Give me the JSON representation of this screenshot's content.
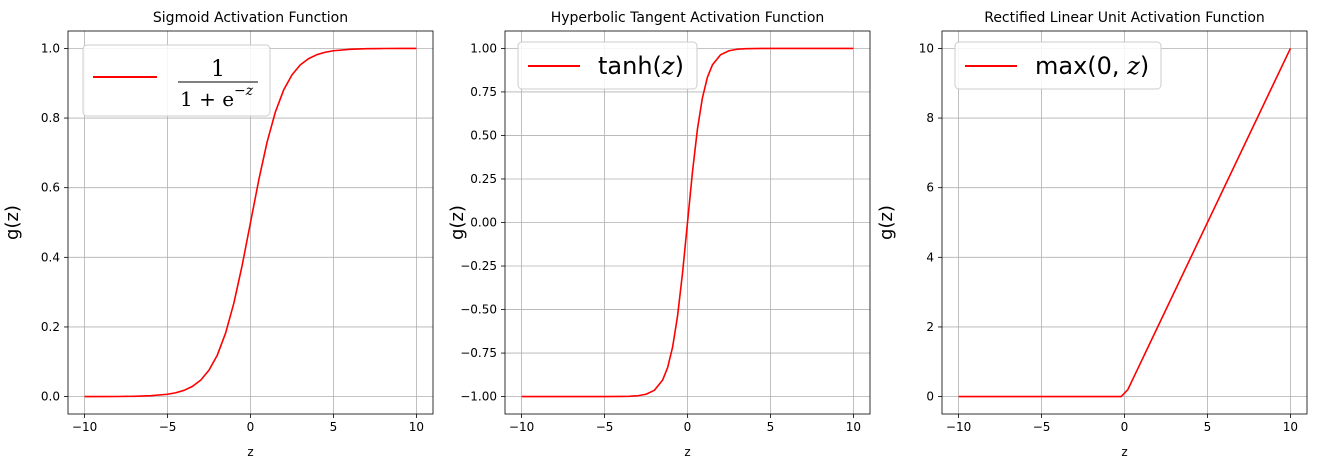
{
  "chart_data": [
    {
      "type": "line",
      "title": "Sigmoid Activation Function",
      "xlabel": "z",
      "ylabel": "g(z)",
      "xlim": [
        -11,
        11
      ],
      "ylim": [
        -0.05,
        1.05
      ],
      "xticks": [
        -10,
        -5,
        0,
        5,
        10
      ],
      "xtick_labels": [
        "−10",
        "−5",
        "0",
        "5",
        "10"
      ],
      "yticks": [
        0.0,
        0.2,
        0.4,
        0.6,
        0.8,
        1.0
      ],
      "ytick_labels": [
        "0.0",
        "0.2",
        "0.4",
        "0.6",
        "0.8",
        "1.0"
      ],
      "grid": true,
      "legend_position": "upper-left",
      "legend": {
        "numerator": "1",
        "denominator": "1 + e",
        "exponent": "−z"
      },
      "series": [
        {
          "color": "#ff0000",
          "x": [
            -10,
            -9,
            -8,
            -7,
            -6,
            -5,
            -4.5,
            -4,
            -3.5,
            -3,
            -2.5,
            -2,
            -1.5,
            -1,
            -0.5,
            0,
            0.5,
            1,
            1.5,
            2,
            2.5,
            3,
            3.5,
            4,
            4.5,
            5,
            6,
            7,
            8,
            9,
            10
          ],
          "y": [
            0.0,
            0.0001,
            0.0003,
            0.0009,
            0.0025,
            0.0067,
            0.011,
            0.018,
            0.0293,
            0.0474,
            0.0759,
            0.1192,
            0.1824,
            0.2689,
            0.3775,
            0.5,
            0.6225,
            0.7311,
            0.8176,
            0.8808,
            0.9241,
            0.9526,
            0.9707,
            0.982,
            0.989,
            0.9933,
            0.9975,
            0.9991,
            0.9997,
            0.9999,
            1.0
          ]
        }
      ]
    },
    {
      "type": "line",
      "title": "Hyperbolic Tangent Activation Function",
      "xlabel": "z",
      "ylabel": "g(z)",
      "xlim": [
        -11,
        11
      ],
      "ylim": [
        -1.1,
        1.1
      ],
      "xticks": [
        -10,
        -5,
        0,
        5,
        10
      ],
      "xtick_labels": [
        "−10",
        "−5",
        "0",
        "5",
        "10"
      ],
      "yticks": [
        -1.0,
        -0.75,
        -0.5,
        -0.25,
        0.0,
        0.25,
        0.5,
        0.75,
        1.0
      ],
      "ytick_labels": [
        "−1.00",
        "−0.75",
        "−0.50",
        "−0.25",
        "0.00",
        "0.25",
        "0.50",
        "0.75",
        "1.00"
      ],
      "grid": true,
      "legend_position": "upper-left",
      "legend": {
        "label": "tanh(",
        "var": "z",
        "close": ")"
      },
      "series": [
        {
          "color": "#ff0000",
          "x": [
            -10,
            -5,
            -4,
            -3.5,
            -3,
            -2.5,
            -2,
            -1.5,
            -1.2,
            -0.9,
            -0.6,
            -0.3,
            0,
            0.3,
            0.6,
            0.9,
            1.2,
            1.5,
            2,
            2.5,
            3,
            3.5,
            4,
            5,
            10
          ],
          "y": [
            -1.0,
            -0.9999,
            -0.9993,
            -0.9982,
            -0.9951,
            -0.9866,
            -0.964,
            -0.9051,
            -0.8337,
            -0.7163,
            -0.537,
            -0.2913,
            0.0,
            0.2913,
            0.537,
            0.7163,
            0.8337,
            0.9051,
            0.964,
            0.9866,
            0.9951,
            0.9982,
            0.9993,
            0.9999,
            1.0
          ]
        }
      ]
    },
    {
      "type": "line",
      "title": "Rectified Linear Unit Activation Function",
      "xlabel": "z",
      "ylabel": "g(z)",
      "xlim": [
        -11,
        11
      ],
      "ylim": [
        -0.5,
        10.5
      ],
      "xticks": [
        -10,
        -5,
        0,
        5,
        10
      ],
      "xtick_labels": [
        "−10",
        "−5",
        "0",
        "5",
        "10"
      ],
      "yticks": [
        0,
        2,
        4,
        6,
        8,
        10
      ],
      "ytick_labels": [
        "0",
        "2",
        "4",
        "6",
        "8",
        "10"
      ],
      "grid": true,
      "legend_position": "upper-left",
      "legend": {
        "label": "max(0, ",
        "var": "z",
        "close": ")"
      },
      "series": [
        {
          "color": "#ff0000",
          "x": [
            -10,
            -0.2,
            0.2,
            10
          ],
          "y": [
            0,
            0,
            0.2,
            10
          ]
        }
      ]
    }
  ]
}
